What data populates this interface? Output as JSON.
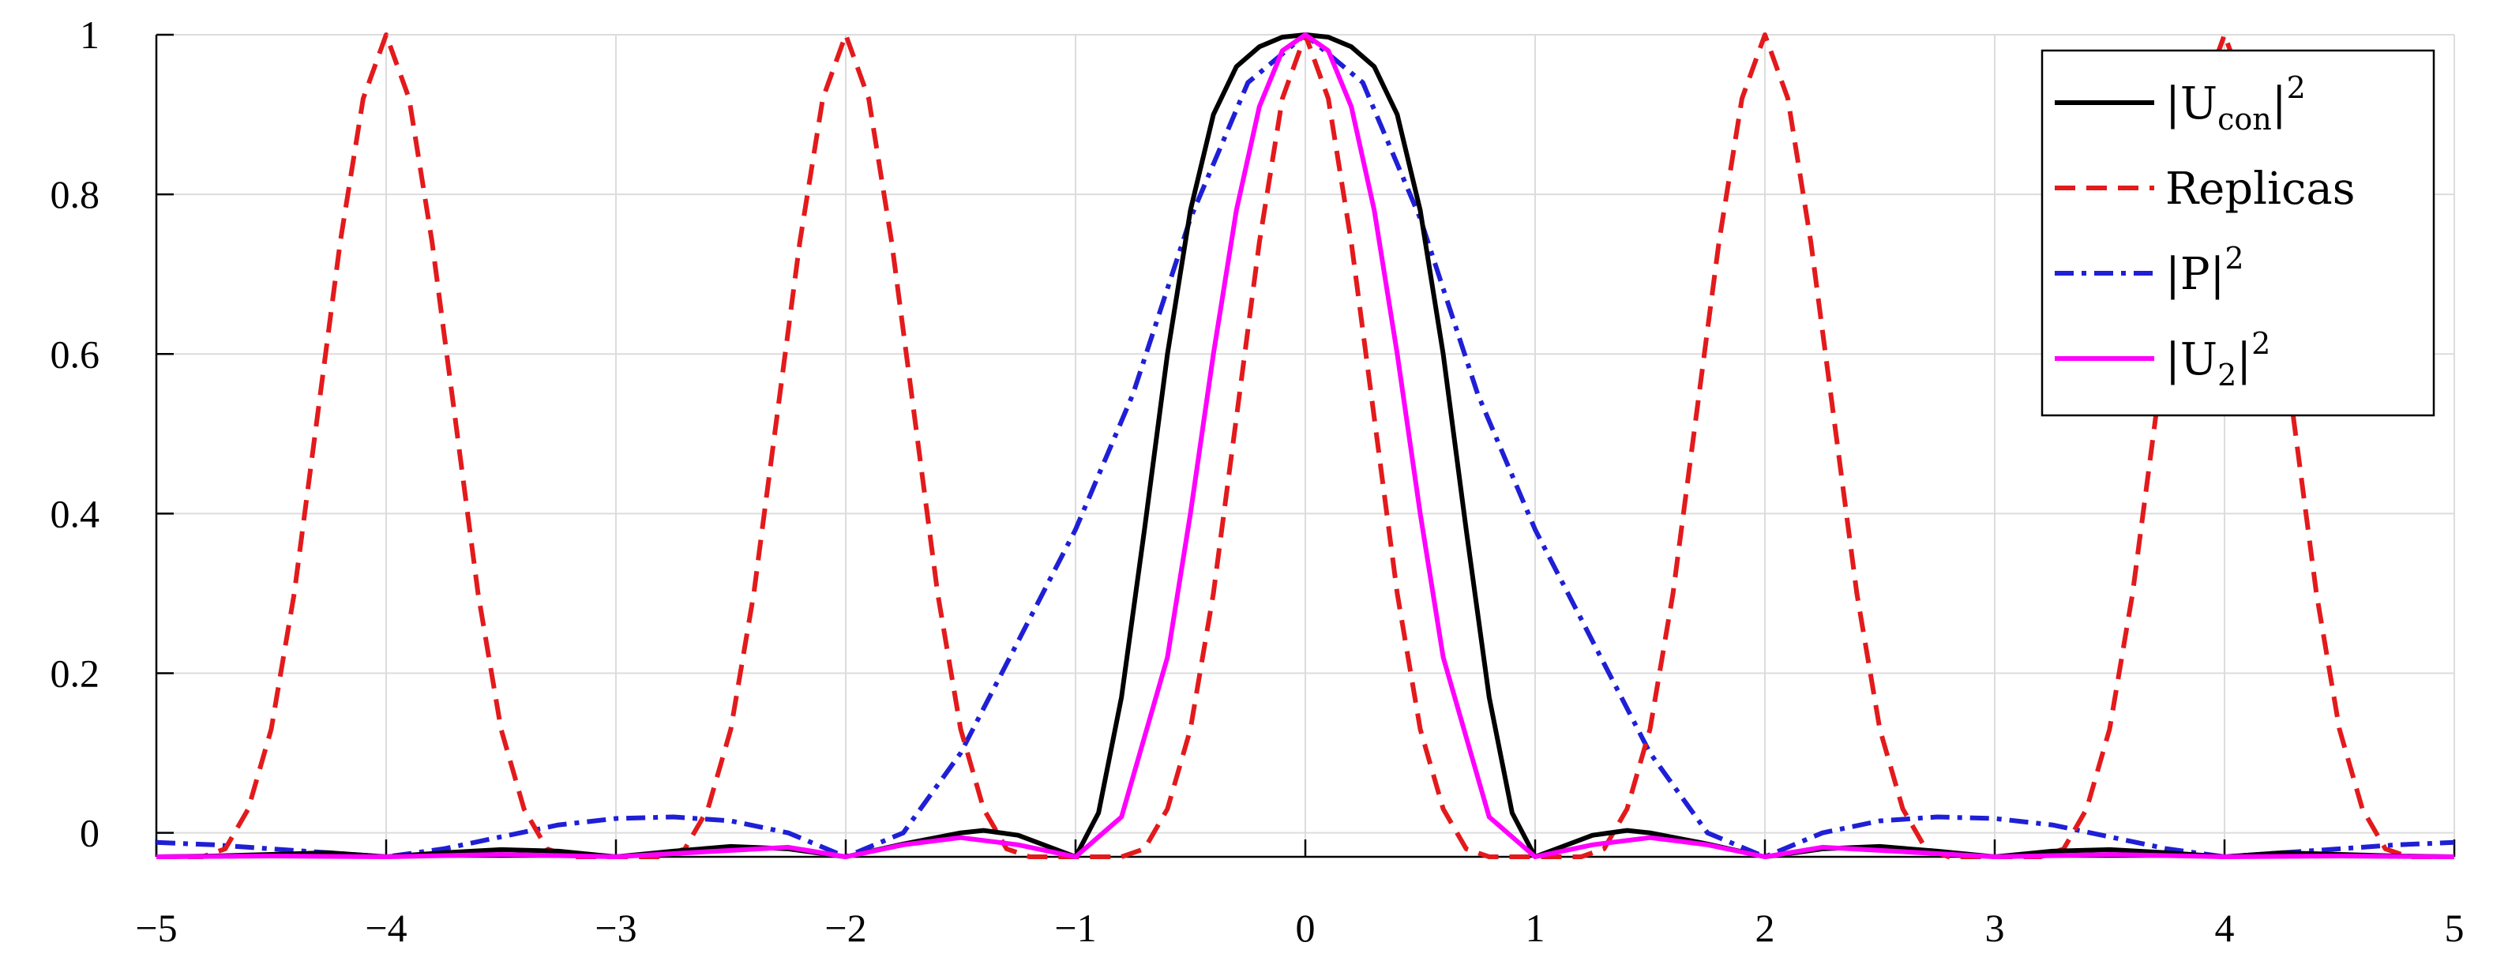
{
  "chart_data": {
    "type": "line",
    "title": "",
    "xlabel": "",
    "ylabel": "",
    "xlim": [
      -5,
      5
    ],
    "ylim": [
      -0.03,
      1.0
    ],
    "xticks": [
      -5,
      -4,
      -3,
      -2,
      -1,
      0,
      1,
      2,
      3,
      4,
      5
    ],
    "xtick_labels": [
      "−5",
      "−4",
      "−3",
      "−2",
      "−1",
      "0",
      "1",
      "2",
      "3",
      "4",
      "5"
    ],
    "yticks": [
      1,
      0.8,
      0.6,
      0.4,
      0.2,
      0
    ],
    "ytick_labels": [
      "1",
      "0.8",
      "0.6",
      "0.4",
      "0.2",
      "0"
    ],
    "grid": true,
    "legend_position": "top-right",
    "series": [
      {
        "name": "|U_con|²",
        "color": "#000000",
        "style": "solid",
        "x": [
          -5,
          -4.75,
          -4.5,
          -4.25,
          -4,
          -3.75,
          -3.5,
          -3.25,
          -3,
          -2.75,
          -2.5,
          -2.25,
          -2,
          -1.75,
          -1.5,
          -1.4,
          -1.25,
          -1,
          -0.9,
          -0.8,
          -0.7,
          -0.6,
          -0.5,
          -0.4,
          -0.3,
          -0.2,
          -0.1,
          0,
          0.1,
          0.2,
          0.3,
          0.4,
          0.5,
          0.6,
          0.7,
          0.8,
          0.9,
          1,
          1.25,
          1.4,
          1.5,
          1.75,
          2,
          2.25,
          2.5,
          2.75,
          3,
          3.25,
          3.5,
          3.75,
          4,
          4.25,
          4.5,
          4.75,
          5
        ],
        "y": [
          -0.03,
          -0.029,
          -0.027,
          -0.025,
          -0.03,
          -0.025,
          -0.021,
          -0.023,
          -0.03,
          -0.023,
          -0.017,
          -0.02,
          -0.03,
          -0.014,
          0.0,
          0.003,
          -0.003,
          -0.03,
          0.025,
          0.17,
          0.38,
          0.6,
          0.78,
          0.9,
          0.96,
          0.985,
          0.997,
          1.0,
          0.997,
          0.985,
          0.96,
          0.9,
          0.78,
          0.6,
          0.38,
          0.17,
          0.025,
          -0.03,
          -0.003,
          0.003,
          0.0,
          -0.014,
          -0.03,
          -0.02,
          -0.017,
          -0.023,
          -0.03,
          -0.023,
          -0.021,
          -0.025,
          -0.03,
          -0.025,
          -0.027,
          -0.029,
          -0.03
        ]
      },
      {
        "name": "Replicas",
        "color": "#e31a1c",
        "style": "dashed",
        "x": [
          -5,
          -4.9,
          -4.8,
          -4.7,
          -4.6,
          -4.5,
          -4.4,
          -4.3,
          -4.2,
          -4.1,
          -4,
          -3.9,
          -3.8,
          -3.7,
          -3.6,
          -3.5,
          -3.4,
          -3.3,
          -3.2,
          -3.1,
          -3,
          -2.9,
          -2.8,
          -2.7,
          -2.6,
          -2.5,
          -2.4,
          -2.3,
          -2.2,
          -2.1,
          -2,
          -1.9,
          -1.8,
          -1.7,
          -1.6,
          -1.5,
          -1.4,
          -1.3,
          -1.2,
          -1.1,
          -1,
          -0.9,
          -0.8,
          -0.7,
          -0.6,
          -0.5,
          -0.4,
          -0.3,
          -0.2,
          -0.1,
          0,
          0.1,
          0.2,
          0.3,
          0.4,
          0.5,
          0.6,
          0.7,
          0.8,
          0.9,
          1,
          1.1,
          1.2,
          1.3,
          1.4,
          1.5,
          1.6,
          1.7,
          1.8,
          1.9,
          2,
          2.1,
          2.2,
          2.3,
          2.4,
          2.5,
          2.6,
          2.7,
          2.8,
          2.9,
          3,
          3.1,
          3.2,
          3.3,
          3.4,
          3.5,
          3.6,
          3.7,
          3.8,
          3.9,
          4,
          4.1,
          4.2,
          4.3,
          4.4,
          4.5,
          4.6,
          4.7,
          4.8,
          4.9,
          5
        ],
        "y": [
          -0.03,
          -0.03,
          -0.03,
          -0.02,
          0.03,
          0.13,
          0.3,
          0.52,
          0.74,
          0.92,
          1.0,
          0.92,
          0.74,
          0.52,
          0.3,
          0.13,
          0.03,
          -0.02,
          -0.03,
          -0.03,
          -0.03,
          -0.03,
          -0.03,
          -0.02,
          0.03,
          0.13,
          0.3,
          0.52,
          0.74,
          0.92,
          1.0,
          0.92,
          0.74,
          0.52,
          0.3,
          0.13,
          0.03,
          -0.02,
          -0.03,
          -0.03,
          -0.03,
          -0.03,
          -0.03,
          -0.02,
          0.03,
          0.13,
          0.3,
          0.52,
          0.74,
          0.92,
          1.0,
          0.92,
          0.74,
          0.52,
          0.3,
          0.13,
          0.03,
          -0.02,
          -0.03,
          -0.03,
          -0.03,
          -0.03,
          -0.03,
          -0.02,
          0.03,
          0.13,
          0.3,
          0.52,
          0.74,
          0.92,
          1.0,
          0.92,
          0.74,
          0.52,
          0.3,
          0.13,
          0.03,
          -0.02,
          -0.03,
          -0.03,
          -0.03,
          -0.03,
          -0.03,
          -0.02,
          0.03,
          0.13,
          0.3,
          0.52,
          0.74,
          0.92,
          1.0,
          0.92,
          0.74,
          0.52,
          0.3,
          0.13,
          0.03,
          -0.02,
          -0.03,
          -0.03,
          -0.03
        ]
      },
      {
        "name": "|P|²",
        "color": "#1f1fd6",
        "style": "dashdot",
        "x": [
          -5,
          -4.75,
          -4.5,
          -4.25,
          -4,
          -3.75,
          -3.5,
          -3.25,
          -3,
          -2.75,
          -2.5,
          -2.25,
          -2,
          -1.75,
          -1.5,
          -1.25,
          -1,
          -0.75,
          -0.5,
          -0.25,
          0,
          0.25,
          0.5,
          0.75,
          1,
          1.25,
          1.5,
          1.75,
          2,
          2.25,
          2.5,
          2.75,
          3,
          3.25,
          3.5,
          3.75,
          4,
          4.25,
          4.5,
          4.75,
          5
        ],
        "y": [
          -0.012,
          -0.015,
          -0.02,
          -0.025,
          -0.03,
          -0.02,
          -0.005,
          0.01,
          0.018,
          0.02,
          0.015,
          0.0,
          -0.03,
          0.0,
          0.1,
          0.24,
          0.38,
          0.55,
          0.77,
          0.94,
          1.0,
          0.94,
          0.77,
          0.55,
          0.38,
          0.24,
          0.1,
          0.0,
          -0.03,
          0.0,
          0.015,
          0.02,
          0.018,
          0.01,
          -0.005,
          -0.02,
          -0.03,
          -0.025,
          -0.02,
          -0.015,
          -0.012
        ]
      },
      {
        "name": "|U₂|²",
        "color": "#ff00ff",
        "style": "solid",
        "x": [
          -5,
          -4.5,
          -4,
          -3.5,
          -3,
          -2.5,
          -2.25,
          -2,
          -1.75,
          -1.5,
          -1.25,
          -1,
          -0.8,
          -0.6,
          -0.5,
          -0.4,
          -0.3,
          -0.2,
          -0.1,
          0,
          0.1,
          0.2,
          0.3,
          0.4,
          0.5,
          0.6,
          0.8,
          1,
          1.25,
          1.5,
          1.75,
          2,
          2.25,
          2.5,
          3,
          3.5,
          4,
          4.5,
          5
        ],
        "y": [
          -0.03,
          -0.029,
          -0.03,
          -0.027,
          -0.03,
          -0.022,
          -0.018,
          -0.03,
          -0.015,
          -0.006,
          -0.015,
          -0.03,
          0.02,
          0.22,
          0.4,
          0.6,
          0.78,
          0.91,
          0.98,
          1.0,
          0.98,
          0.91,
          0.78,
          0.6,
          0.4,
          0.22,
          0.02,
          -0.03,
          -0.015,
          -0.006,
          -0.015,
          -0.03,
          -0.018,
          -0.022,
          -0.03,
          -0.027,
          -0.03,
          -0.029,
          -0.03
        ]
      }
    ]
  },
  "legend": {
    "entries": [
      {
        "base": "|U",
        "sub": "con",
        "tail": "|",
        "sup": "2",
        "color": "#000000",
        "style": "solid"
      },
      {
        "base": "Replicas",
        "sub": "",
        "tail": "",
        "sup": "",
        "color": "#e31a1c",
        "style": "dashed"
      },
      {
        "base": "|P|",
        "sub": "",
        "tail": "",
        "sup": "2",
        "color": "#1f1fd6",
        "style": "dashdot"
      },
      {
        "base": "|U",
        "sub": "2",
        "tail": "|",
        "sup": "2",
        "color": "#ff00ff",
        "style": "solid"
      }
    ]
  }
}
